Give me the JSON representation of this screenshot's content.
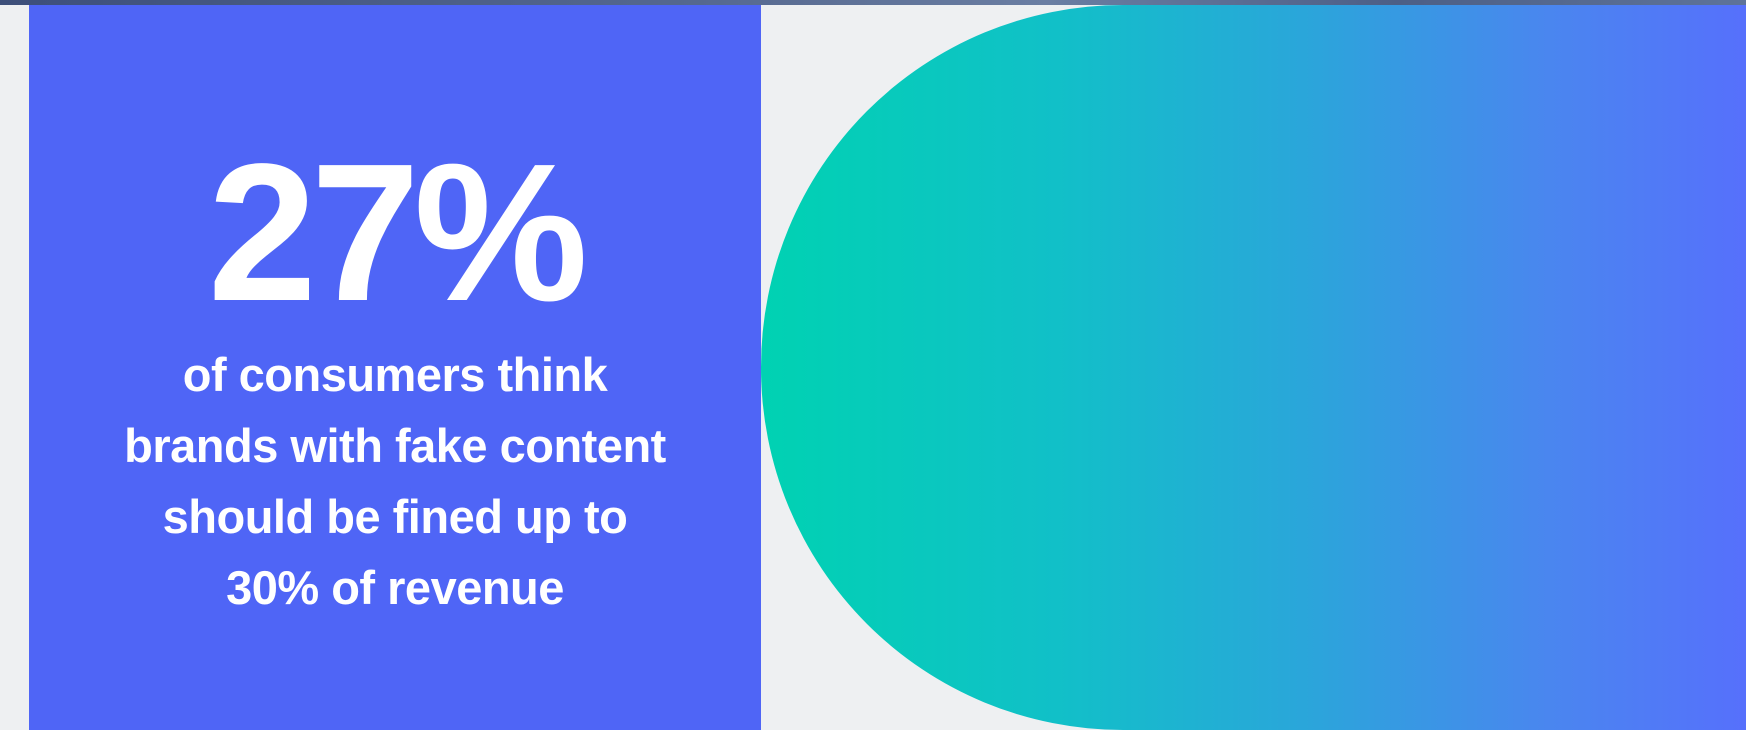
{
  "stat": {
    "value": "27%",
    "caption_lines": [
      "of consumers think",
      "brands with fake content",
      "should be fined up to",
      "30% of revenue"
    ]
  },
  "colors": {
    "panel": "#4f65f6",
    "background": "#eef0f2",
    "gradient_start": "#00d2b2",
    "gradient_end": "#5670fc",
    "text": "#ffffff"
  }
}
